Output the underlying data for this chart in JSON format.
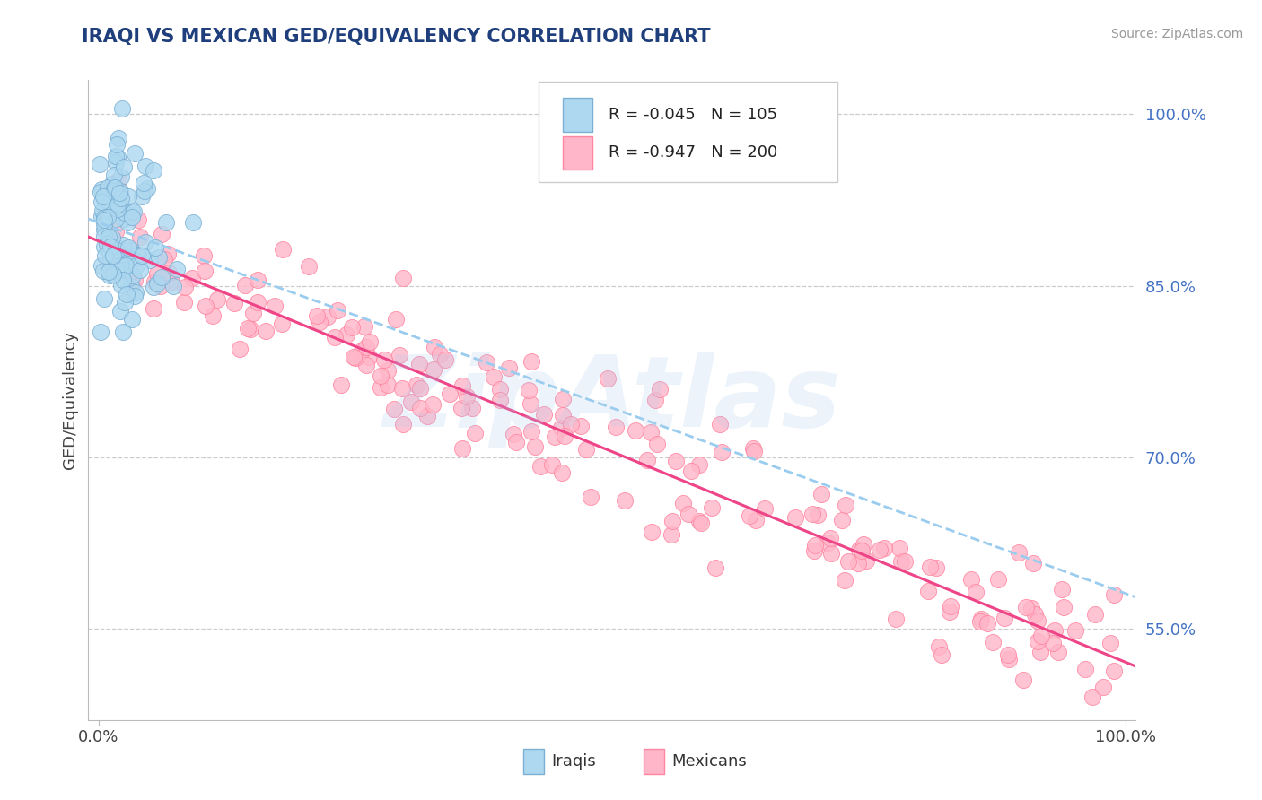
{
  "title": "IRAQI VS MEXICAN GED/EQUIVALENCY CORRELATION CHART",
  "source": "Source: ZipAtlas.com",
  "ylabel": "GED/Equivalency",
  "ytick_labels": [
    "55.0%",
    "70.0%",
    "85.0%",
    "100.0%"
  ],
  "ytick_values": [
    0.55,
    0.7,
    0.85,
    1.0
  ],
  "xtick_labels": [
    "0.0%",
    "100.0%"
  ],
  "xtick_values": [
    0.0,
    1.0
  ],
  "xlim": [
    -0.01,
    1.01
  ],
  "ylim": [
    0.47,
    1.03
  ],
  "legend_R_iraqi": "R = -0.045",
  "legend_N_iraqi": "N = 105",
  "legend_R_mexican": "R = -0.947",
  "legend_N_mexican": "N = 200",
  "iraqi_fill": "#ADD8F0",
  "iraqi_edge": "#7BAFD4",
  "mexican_fill": "#FFB6C8",
  "mexican_edge": "#FF85A0",
  "trendline_iraqi": "#99CCEE",
  "trendline_mexican": "#EE4488",
  "background_color": "#ffffff",
  "grid_color": "#CCCCCC",
  "title_color": "#1F3E7C",
  "ytick_color": "#4472C4",
  "watermark": "ZipAtlas",
  "n_iraqi": 105,
  "n_mexican": 200
}
